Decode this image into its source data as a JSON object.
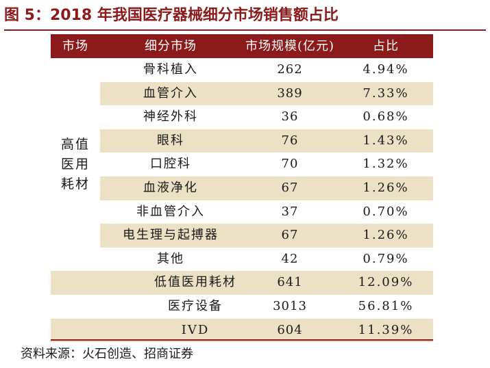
{
  "title": "图 5：2018 年我国医疗器械细分市场销售额占比",
  "table": {
    "headers": [
      "市场",
      "细分市场",
      "市场规模(亿元)",
      "占比"
    ],
    "group_label_lines": [
      "高值",
      "医用",
      "耗材"
    ],
    "rows": [
      {
        "sub": "骨科植入",
        "value": "262",
        "pct": "4.94%"
      },
      {
        "sub": "血管介入",
        "value": "389",
        "pct": "7.33%"
      },
      {
        "sub": "神经外科",
        "value": "36",
        "pct": "0.68%"
      },
      {
        "sub": "眼科",
        "value": "76",
        "pct": "1.43%"
      },
      {
        "sub": "口腔科",
        "value": "70",
        "pct": "1.32%"
      },
      {
        "sub": "血液净化",
        "value": "67",
        "pct": "1.26%"
      },
      {
        "sub": "非血管介入",
        "value": "37",
        "pct": "0.70%"
      },
      {
        "sub": "电生理与起搏器",
        "value": "67",
        "pct": "1.26%"
      },
      {
        "sub": "其他",
        "value": "42",
        "pct": "0.79%"
      },
      {
        "sub": "低值医用耗材",
        "value": "641",
        "pct": "12.09%"
      },
      {
        "sub": "医疗设备",
        "value": "3013",
        "pct": "56.81%"
      },
      {
        "sub": "IVD",
        "value": "604",
        "pct": "11.39%"
      }
    ]
  },
  "source": "资料来源：火石创造、招商证券",
  "colors": {
    "accent": "#8B1A1A",
    "row_shade": "#EDE1C5"
  }
}
